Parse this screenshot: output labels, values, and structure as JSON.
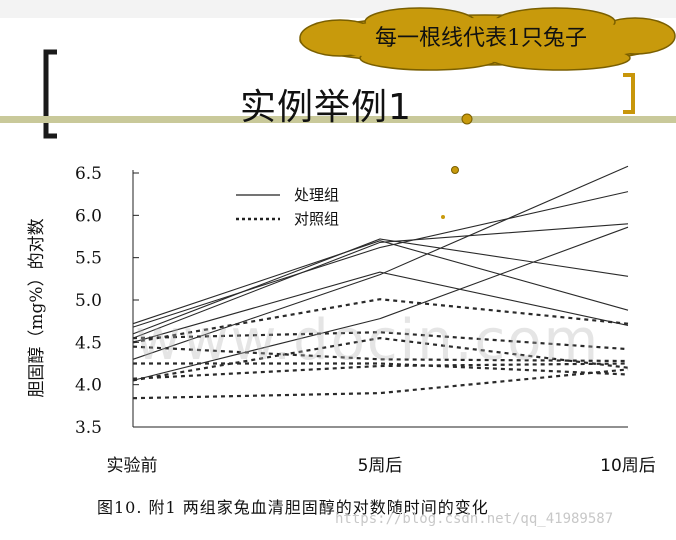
{
  "slide": {
    "title": "实例举例1",
    "cloud_note": "每一根线代表1只兔子",
    "caption": "图10. 附1   两组家兔血清胆固醇的对数随时间的变化",
    "watermark_url": "https://blog.csdn.net/qq_41989587",
    "watermark_big": "www.docin.com"
  },
  "colors": {
    "accent": "#c89a0c",
    "bracket_left": "#1a1a1a",
    "bracket_right": "#c8960a",
    "line": "#2a2a2a"
  },
  "chart_data": {
    "type": "line",
    "title": "",
    "xlabel": "",
    "ylabel": "胆固醇（mg%）的对数",
    "categories": [
      "实验前",
      "5周后",
      "10周后"
    ],
    "ylim": [
      3.5,
      6.5
    ],
    "yticks": [
      "3.5",
      "4.0",
      "4.5",
      "5.0",
      "5.5",
      "6.0",
      "6.5"
    ],
    "legend": {
      "placement": "top-left",
      "entries": [
        "处理组",
        "对照组"
      ]
    },
    "series": [
      {
        "group": "处理组",
        "style": "solid",
        "values": [
          4.72,
          5.7,
          4.88
        ]
      },
      {
        "group": "处理组",
        "style": "solid",
        "values": [
          4.68,
          5.62,
          6.28
        ]
      },
      {
        "group": "处理组",
        "style": "solid",
        "values": [
          4.55,
          5.68,
          5.9
        ]
      },
      {
        "group": "处理组",
        "style": "solid",
        "values": [
          4.6,
          5.72,
          5.28
        ]
      },
      {
        "group": "处理组",
        "style": "solid",
        "values": [
          4.5,
          5.33,
          4.7
        ]
      },
      {
        "group": "处理组",
        "style": "solid",
        "values": [
          4.3,
          5.3,
          6.58
        ]
      },
      {
        "group": "处理组",
        "style": "solid",
        "values": [
          4.05,
          4.78,
          5.86
        ]
      },
      {
        "group": "对照组",
        "style": "dashed",
        "values": [
          4.5,
          5.01,
          4.72
        ]
      },
      {
        "group": "对照组",
        "style": "dashed",
        "values": [
          4.55,
          4.62,
          4.42
        ]
      },
      {
        "group": "对照组",
        "style": "dashed",
        "values": [
          4.05,
          4.55,
          4.2
        ]
      },
      {
        "group": "对照组",
        "style": "dashed",
        "values": [
          4.45,
          4.3,
          4.28
        ]
      },
      {
        "group": "对照组",
        "style": "dashed",
        "values": [
          4.25,
          4.25,
          4.12
        ]
      },
      {
        "group": "对照组",
        "style": "dashed",
        "values": [
          4.07,
          4.22,
          4.25
        ]
      },
      {
        "group": "对照组",
        "style": "dashed",
        "values": [
          3.84,
          3.9,
          4.18
        ]
      }
    ]
  }
}
